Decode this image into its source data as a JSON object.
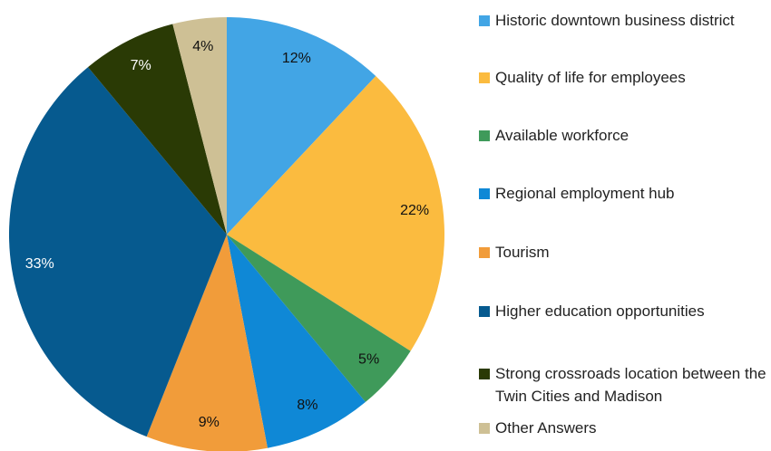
{
  "chart_data": {
    "type": "pie",
    "categories": [
      "Historic downtown business district",
      "Quality of life for employees",
      "Available workforce",
      "Regional employment hub",
      "Tourism",
      "Higher education opportunities",
      "Strong crossroads location between the Twin Cities and Madison",
      "Other Answers"
    ],
    "values": [
      12,
      22,
      5,
      8,
      9,
      33,
      7,
      4
    ],
    "value_labels": [
      "12%",
      "22%",
      "5%",
      "8%",
      "9%",
      "33%",
      "7%",
      "4%"
    ],
    "colors": [
      "#42a5e5",
      "#fbbb3f",
      "#3f9a5a",
      "#0f88d6",
      "#f19c3a",
      "#065a8f",
      "#2a3a05",
      "#cec095"
    ]
  }
}
